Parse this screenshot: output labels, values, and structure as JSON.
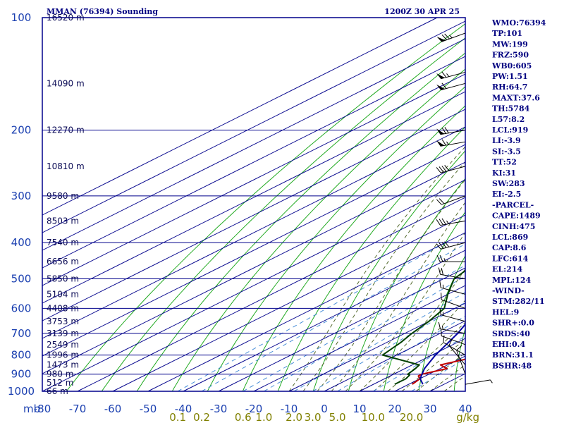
{
  "chart_data": {
    "type": "line",
    "title": "MMAN (76394) Sounding",
    "valid_time": "1200Z 30 APR 25",
    "pressure_unit_label": "mb",
    "pressure_levels": [
      100,
      200,
      300,
      400,
      500,
      600,
      700,
      800,
      900,
      1000
    ],
    "temp_ticks": [
      "-80",
      "-70",
      "-60",
      "-50",
      "-40",
      "-30",
      "-20",
      "-10",
      "0",
      "10",
      "20",
      "30",
      "40"
    ],
    "mixing_ratio_labels": [
      "0.1",
      "0.2",
      "0.6",
      "1.0",
      "2.0",
      "3.0",
      "5.0",
      "10.0",
      "20.0"
    ],
    "mixing_ratio_unit": "g/kg",
    "height_labels": [
      {
        "p": 100,
        "label": "16520 m"
      },
      {
        "p": 150,
        "label": "14090 m"
      },
      {
        "p": 200,
        "label": "12270 m"
      },
      {
        "p": 250,
        "label": "10810 m"
      },
      {
        "p": 300,
        "label": "9580 m"
      },
      {
        "p": 350,
        "label": "8503 m"
      },
      {
        "p": 400,
        "label": "7540 m"
      },
      {
        "p": 450,
        "label": "6656 m"
      },
      {
        "p": 500,
        "label": "5850 m"
      },
      {
        "p": 550,
        "label": "5104 m"
      },
      {
        "p": 600,
        "label": "4408 m"
      },
      {
        "p": 650,
        "label": "3753 m"
      },
      {
        "p": 700,
        "label": "3139 m"
      },
      {
        "p": 750,
        "label": "2549 m"
      },
      {
        "p": 800,
        "label": "1996 m"
      },
      {
        "p": 850,
        "label": "1473 m"
      },
      {
        "p": 900,
        "label": "980 m"
      },
      {
        "p": 950,
        "label": "512 m"
      },
      {
        "p": 1000,
        "label": "66 m"
      }
    ],
    "series": [
      {
        "key": "temperature",
        "color": "#c00000",
        "points": [
          {
            "p": 958,
            "t": 21
          },
          {
            "p": 925,
            "t": 20
          },
          {
            "p": 910,
            "t": 18
          },
          {
            "p": 900,
            "t": 18
          },
          {
            "p": 870,
            "t": 22
          },
          {
            "p": 850,
            "t": 18
          },
          {
            "p": 805,
            "t": 24
          },
          {
            "p": 760,
            "t": 19
          },
          {
            "p": 700,
            "t": 12
          },
          {
            "p": 650,
            "t": 5
          },
          {
            "p": 600,
            "t": -2
          },
          {
            "p": 560,
            "t": -6
          },
          {
            "p": 500,
            "t": -10
          },
          {
            "p": 450,
            "t": -16
          },
          {
            "p": 400,
            "t": -22
          },
          {
            "p": 350,
            "t": -28
          },
          {
            "p": 300,
            "t": -36
          },
          {
            "p": 250,
            "t": -46
          },
          {
            "p": 200,
            "t": -53
          },
          {
            "p": 150,
            "t": -62
          },
          {
            "p": 100,
            "t": -73
          }
        ]
      },
      {
        "key": "dewpoint",
        "color": "#004000",
        "points": [
          {
            "p": 958,
            "t": 16
          },
          {
            "p": 925,
            "t": 16
          },
          {
            "p": 905,
            "t": 15
          },
          {
            "p": 900,
            "t": 14
          },
          {
            "p": 870,
            "t": 13
          },
          {
            "p": 850,
            "t": 12
          },
          {
            "p": 800,
            "t": -4
          },
          {
            "p": 740,
            "t": -6
          },
          {
            "p": 700,
            "t": -8
          },
          {
            "p": 650,
            "t": -10
          },
          {
            "p": 600,
            "t": -13
          },
          {
            "p": 550,
            "t": -20
          },
          {
            "p": 500,
            "t": -27
          },
          {
            "p": 450,
            "t": -30
          },
          {
            "p": 400,
            "t": -36
          },
          {
            "p": 380,
            "t": -37
          },
          {
            "p": 360,
            "t": -39
          },
          {
            "p": 330,
            "t": -49
          },
          {
            "p": 300,
            "t": -57
          },
          {
            "p": 250,
            "t": -60
          },
          {
            "p": 230,
            "t": -70
          },
          {
            "p": 200,
            "t": -80
          }
        ]
      },
      {
        "key": "parcel",
        "color": "#0000a0",
        "points": [
          {
            "p": 958,
            "t": 24
          },
          {
            "p": 925,
            "t": 20
          },
          {
            "p": 869,
            "t": 15.5
          },
          {
            "p": 800,
            "t": 11
          },
          {
            "p": 700,
            "t": 5
          },
          {
            "p": 614,
            "t": -2
          },
          {
            "p": 500,
            "t": -14
          },
          {
            "p": 400,
            "t": -29
          },
          {
            "p": 300,
            "t": -48
          },
          {
            "p": 250,
            "t": -59
          },
          {
            "p": 214,
            "t": -66
          },
          {
            "p": 124,
            "t": -85
          }
        ]
      }
    ],
    "wind_barbs": [
      {
        "p": 110,
        "dir": 250,
        "spd": 75
      },
      {
        "p": 140,
        "dir": 255,
        "spd": 65
      },
      {
        "p": 150,
        "dir": 255,
        "spd": 60
      },
      {
        "p": 200,
        "dir": 260,
        "spd": 70
      },
      {
        "p": 215,
        "dir": 260,
        "spd": 65
      },
      {
        "p": 250,
        "dir": 255,
        "spd": 40
      },
      {
        "p": 300,
        "dir": 250,
        "spd": 20
      },
      {
        "p": 350,
        "dir": 260,
        "spd": 35
      },
      {
        "p": 400,
        "dir": 255,
        "spd": 40
      },
      {
        "p": 450,
        "dir": 270,
        "spd": 25
      },
      {
        "p": 500,
        "dir": 280,
        "spd": 20
      },
      {
        "p": 550,
        "dir": 285,
        "spd": 15
      },
      {
        "p": 600,
        "dir": 290,
        "spd": 10
      },
      {
        "p": 650,
        "dir": 285,
        "spd": 15
      },
      {
        "p": 700,
        "dir": 280,
        "spd": 15
      },
      {
        "p": 750,
        "dir": 290,
        "spd": 10
      },
      {
        "p": 800,
        "dir": 300,
        "spd": 10
      },
      {
        "p": 850,
        "dir": 320,
        "spd": 10
      },
      {
        "p": 900,
        "dir": 340,
        "spd": 10
      },
      {
        "p": 958,
        "dir": 80,
        "spd": 5
      }
    ]
  },
  "indices": [
    "WMO:76394",
    "TP:101",
    "MW:199",
    "FRZ:590",
    "WB0:605",
    "PW:1.51",
    "RH:64.7",
    "MAXT:37.6",
    "TH:5784",
    "L57:8.2",
    "LCL:919",
    "LI:-3.9",
    "SI:-3.5",
    "TT:52",
    "KI:31",
    "SW:283",
    "EI:-2.5",
    "-PARCEL-",
    "CAPE:1489",
    "CINH:475",
    "LCL:869",
    "CAP:8.6",
    "LFC:614",
    "EL:214",
    "MPL:124",
    "-WIND-",
    "STM:282/11",
    "HEL:9",
    "SHR+:0.0",
    "SRDS:40",
    "EHI:0.4",
    "BRN:31.1",
    "BSHR:48"
  ],
  "colors": {
    "grid": "#00008b",
    "dry_adiabat": "#22aa22",
    "moist_adiabat": "#556b2f",
    "mixing_ratio": "#4a8fd8",
    "temperature": "#c00000",
    "dewpoint": "#004000",
    "parcel": "#0000a0",
    "text": "#000080",
    "axis_label": "#1a3fb0",
    "mixing_label": "#808000",
    "barb": "#000000"
  }
}
